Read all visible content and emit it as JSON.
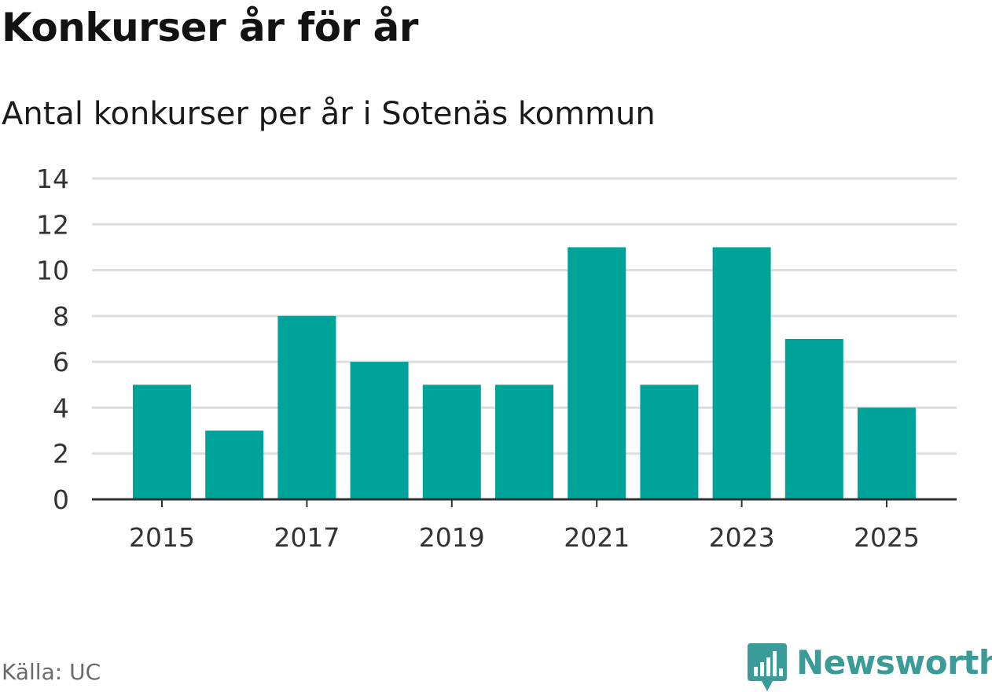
{
  "title": "Konkurser år för år",
  "subtitle": "Antal konkurser per år i Sotenäs kommun",
  "source": "Källa: UC",
  "logo": {
    "text": "Newsworthy",
    "icon": "newsworthy-chat-bars-icon",
    "color": "#3a9b98"
  },
  "chart_data": {
    "type": "bar",
    "title": "Konkurser år för år",
    "subtitle": "Antal konkurser per år i Sotenäs kommun",
    "xlabel": "",
    "ylabel": "",
    "categories": [
      2015,
      2016,
      2017,
      2018,
      2019,
      2020,
      2021,
      2022,
      2023,
      2024,
      2025
    ],
    "values": [
      5,
      3,
      8,
      6,
      5,
      5,
      11,
      5,
      11,
      7,
      4
    ],
    "ylim": [
      0,
      14
    ],
    "yticks": [
      0,
      2,
      4,
      6,
      8,
      10,
      12,
      14
    ],
    "xtick_labels": [
      "2015",
      "2017",
      "2019",
      "2021",
      "2023",
      "2025"
    ],
    "grid": true,
    "bar_color": "#00a39a",
    "grid_color": "#dddddd",
    "axis_color": "#333333"
  }
}
